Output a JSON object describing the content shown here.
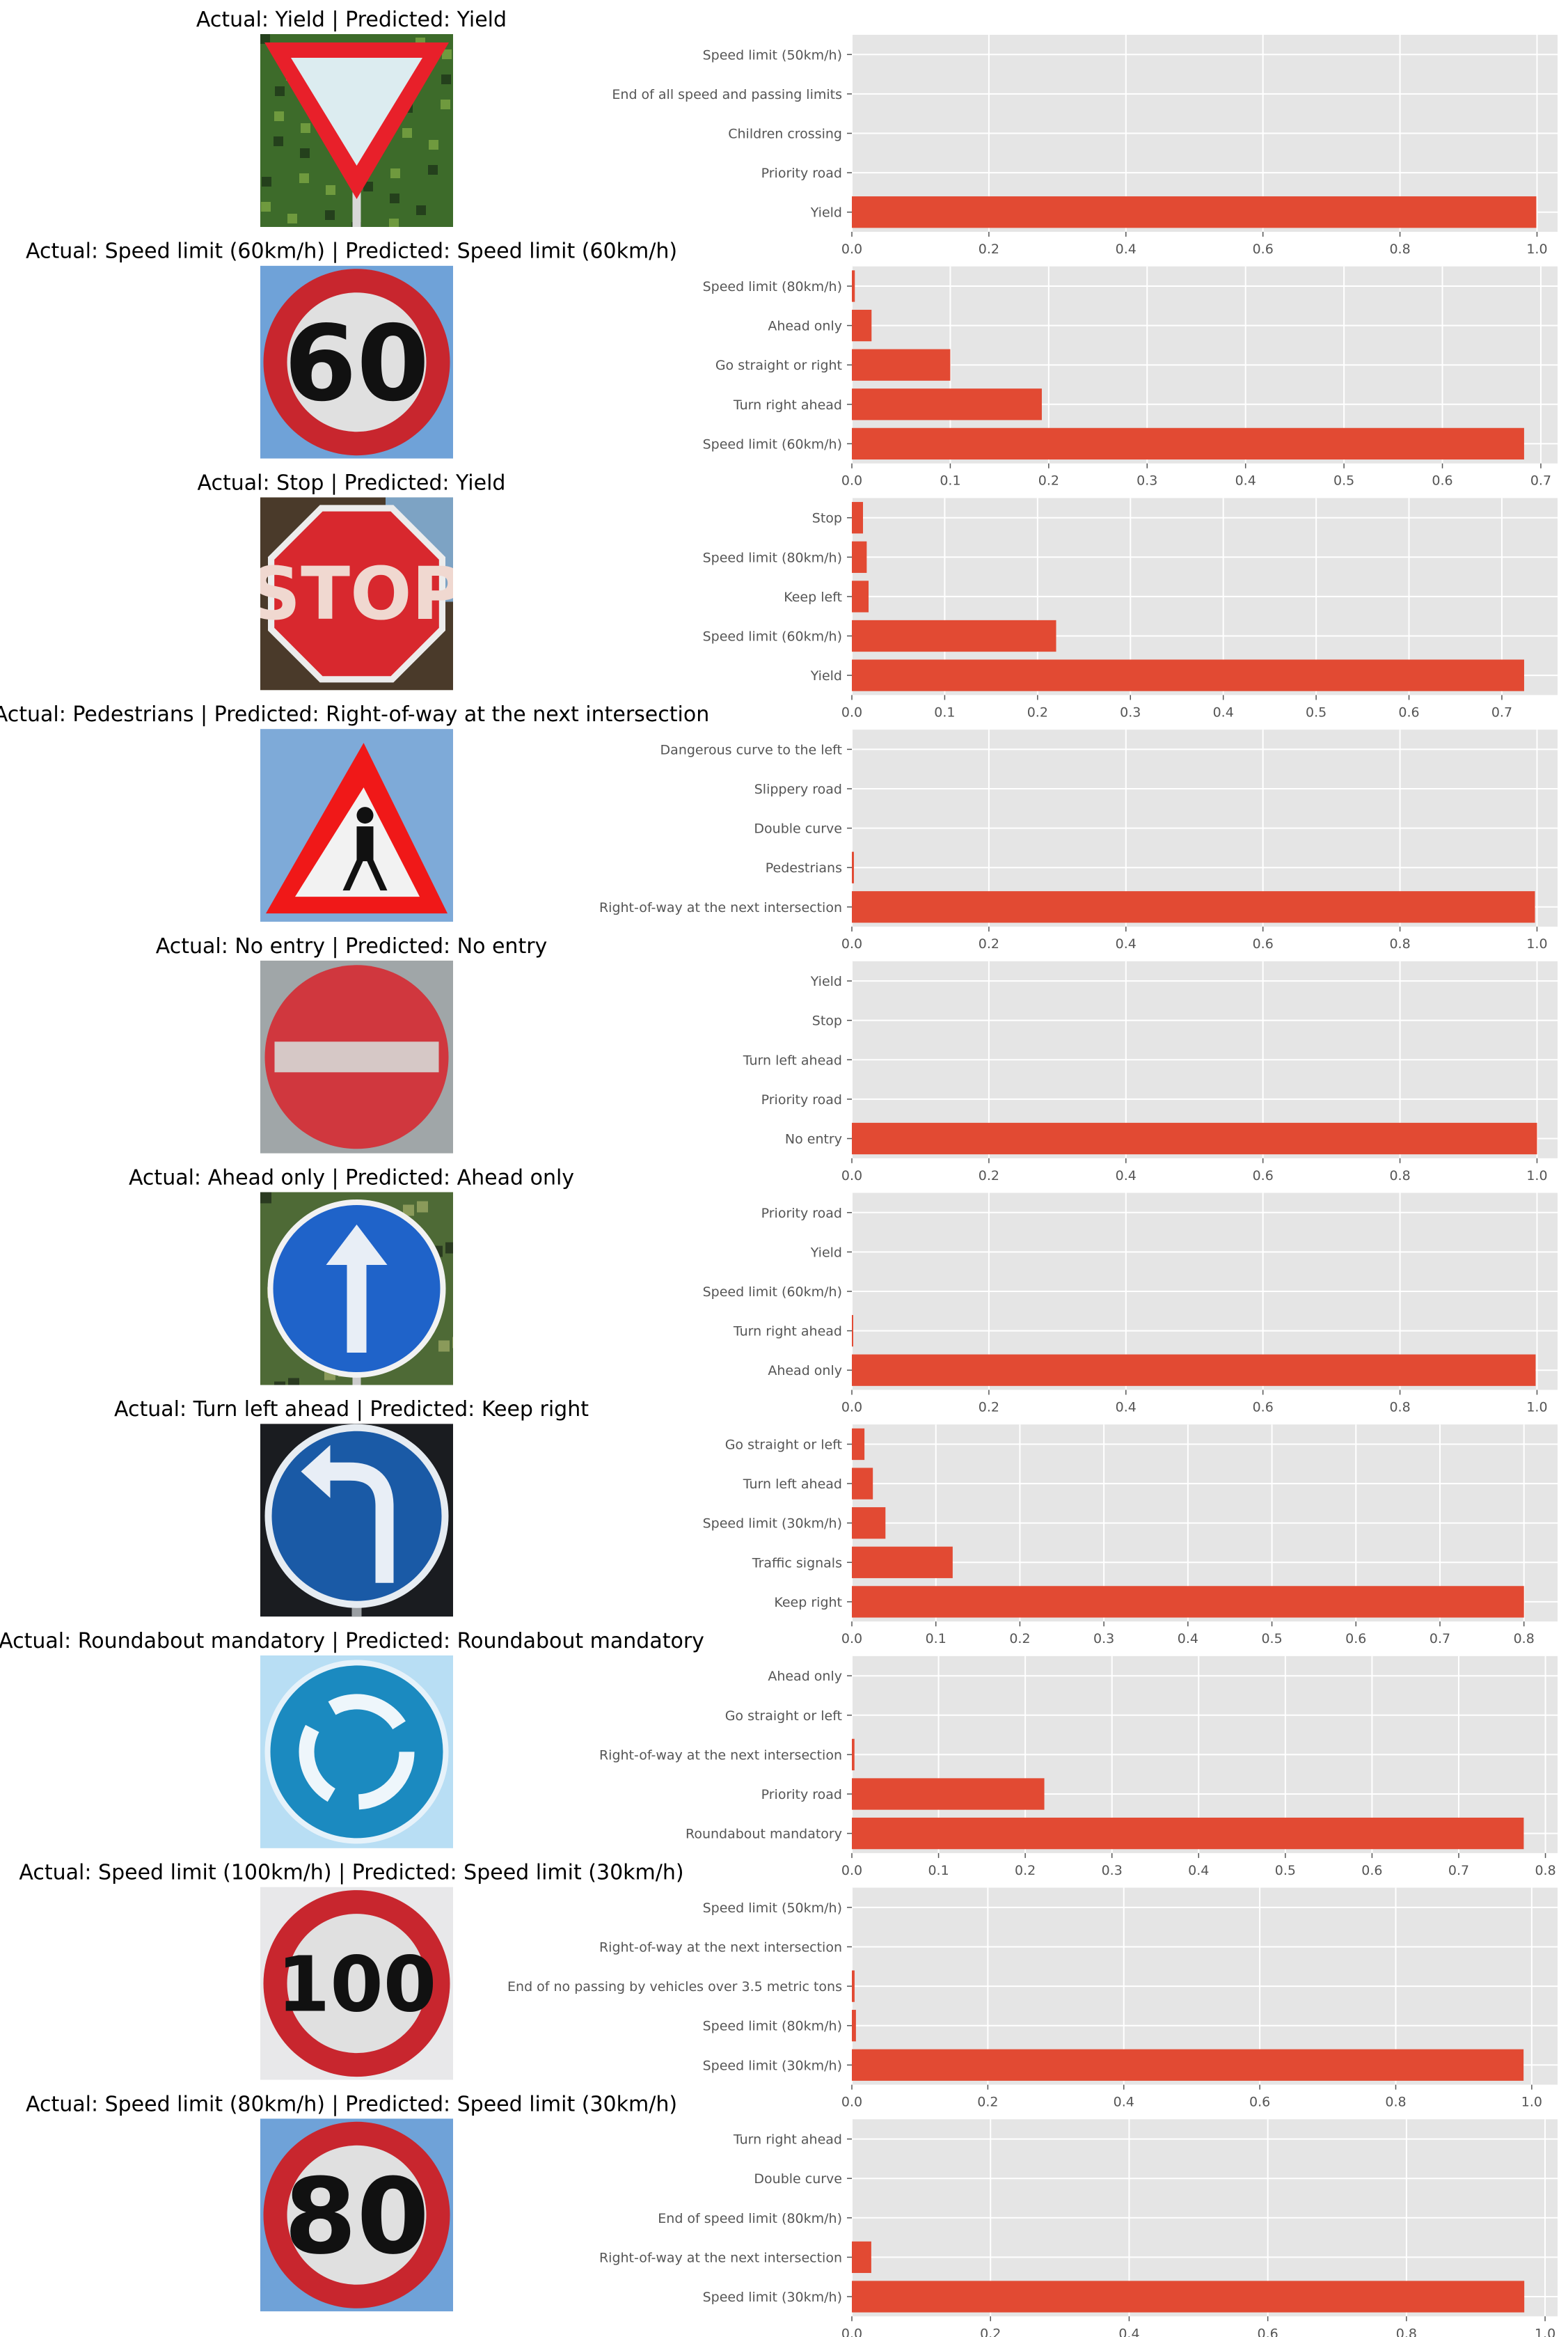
{
  "figure": {
    "background": "#ffffff",
    "panel_background": "#e5e5e5",
    "grid_color": "#ffffff",
    "bar_color": "#e24a33",
    "title_color": "#000000",
    "tick_label_color": "#555555"
  },
  "chart_data": [
    {
      "type": "bar",
      "orientation": "horizontal",
      "title": "Actual: Yield | Predicted: Yield",
      "image": {
        "sign": "yield-sign"
      },
      "categories": [
        "Yield",
        "Priority road",
        "Children crossing",
        "End of all speed and passing limits",
        "Speed limit (50km/h)"
      ],
      "values": [
        0.999,
        0,
        0,
        0,
        0
      ],
      "xlim": [
        0,
        1.03
      ],
      "xticks": [
        0.0,
        0.2,
        0.4,
        0.6,
        0.8,
        1.0
      ],
      "tick_format": 1,
      "grid": true
    },
    {
      "type": "bar",
      "orientation": "horizontal",
      "title": "Actual: Speed limit (60km/h) | Predicted: Speed limit (60km/h)",
      "image": {
        "sign": "speed-60-sign",
        "text": "60"
      },
      "categories": [
        "Speed limit (60km/h)",
        "Turn right ahead",
        "Go straight or right",
        "Ahead only",
        "Speed limit (80km/h)"
      ],
      "values": [
        0.683,
        0.193,
        0.1,
        0.02,
        0.003
      ],
      "xlim": [
        0,
        0.717
      ],
      "xticks": [
        0.0,
        0.1,
        0.2,
        0.3,
        0.4,
        0.5,
        0.6,
        0.7
      ],
      "tick_format": 1,
      "grid": true
    },
    {
      "type": "bar",
      "orientation": "horizontal",
      "title": "Actual: Stop | Predicted: Yield",
      "image": {
        "sign": "stop-sign",
        "text": "STOP"
      },
      "categories": [
        "Yield",
        "Speed limit (60km/h)",
        "Keep left",
        "Speed limit (80km/h)",
        "Stop"
      ],
      "values": [
        0.724,
        0.22,
        0.018,
        0.016,
        0.012
      ],
      "xlim": [
        0,
        0.76
      ],
      "xticks": [
        0.0,
        0.1,
        0.2,
        0.3,
        0.4,
        0.5,
        0.6,
        0.7
      ],
      "tick_format": 1,
      "grid": true
    },
    {
      "type": "bar",
      "orientation": "horizontal",
      "title": "Actual: Pedestrians | Predicted: Right-of-way at the next intersection",
      "image": {
        "sign": "pedestrians-sign"
      },
      "categories": [
        "Right-of-way at the next intersection",
        "Pedestrians",
        "Double curve",
        "Slippery road",
        "Dangerous curve to the left"
      ],
      "values": [
        0.997,
        0.003,
        0,
        0,
        0
      ],
      "xlim": [
        0,
        1.03
      ],
      "xticks": [
        0.0,
        0.2,
        0.4,
        0.6,
        0.8,
        1.0
      ],
      "tick_format": 1,
      "grid": true
    },
    {
      "type": "bar",
      "orientation": "horizontal",
      "title": "Actual: No entry | Predicted: No entry",
      "image": {
        "sign": "no-entry-sign"
      },
      "categories": [
        "No entry",
        "Priority road",
        "Turn left ahead",
        "Stop",
        "Yield"
      ],
      "values": [
        1.0,
        0,
        0,
        0,
        0
      ],
      "xlim": [
        0,
        1.03
      ],
      "xticks": [
        0.0,
        0.2,
        0.4,
        0.6,
        0.8,
        1.0
      ],
      "tick_format": 1,
      "grid": true
    },
    {
      "type": "bar",
      "orientation": "horizontal",
      "title": "Actual: Ahead only | Predicted: Ahead only",
      "image": {
        "sign": "ahead-only-sign"
      },
      "categories": [
        "Ahead only",
        "Turn right ahead",
        "Speed limit (60km/h)",
        "Yield",
        "Priority road"
      ],
      "values": [
        0.998,
        0.002,
        0,
        0,
        0
      ],
      "xlim": [
        0,
        1.03
      ],
      "xticks": [
        0.0,
        0.2,
        0.4,
        0.6,
        0.8,
        1.0
      ],
      "tick_format": 1,
      "grid": true
    },
    {
      "type": "bar",
      "orientation": "horizontal",
      "title": "Actual: Turn left ahead | Predicted: Keep right",
      "image": {
        "sign": "turn-left-ahead-sign"
      },
      "categories": [
        "Keep right",
        "Traffic signals",
        "Speed limit (30km/h)",
        "Turn left ahead",
        "Go straight or left"
      ],
      "values": [
        0.8,
        0.12,
        0.04,
        0.025,
        0.015
      ],
      "xlim": [
        0,
        0.84
      ],
      "xticks": [
        0.0,
        0.1,
        0.2,
        0.3,
        0.4,
        0.5,
        0.6,
        0.7,
        0.8
      ],
      "tick_format": 1,
      "grid": true
    },
    {
      "type": "bar",
      "orientation": "horizontal",
      "title": "Actual: Roundabout mandatory | Predicted: Roundabout mandatory",
      "image": {
        "sign": "roundabout-sign"
      },
      "categories": [
        "Roundabout mandatory",
        "Priority road",
        "Right-of-way at the next intersection",
        "Go straight or left",
        "Ahead only"
      ],
      "values": [
        0.775,
        0.222,
        0.003,
        0,
        0
      ],
      "xlim": [
        0,
        0.814
      ],
      "xticks": [
        0.0,
        0.1,
        0.2,
        0.3,
        0.4,
        0.5,
        0.6,
        0.7,
        0.8
      ],
      "tick_format": 1,
      "grid": true
    },
    {
      "type": "bar",
      "orientation": "horizontal",
      "title": "Actual: Speed limit (100km/h) | Predicted: Speed limit (30km/h)",
      "image": {
        "sign": "speed-100-sign",
        "text": "100"
      },
      "categories": [
        "Speed limit (30km/h)",
        "Speed limit (80km/h)",
        "End of no passing by vehicles over 3.5 metric tons",
        "Right-of-way at the next intersection",
        "Speed limit (50km/h)"
      ],
      "values": [
        0.988,
        0.006,
        0.004,
        0,
        0
      ],
      "xlim": [
        0,
        1.038
      ],
      "xticks": [
        0.0,
        0.2,
        0.4,
        0.6,
        0.8,
        1.0
      ],
      "tick_format": 1,
      "grid": true
    },
    {
      "type": "bar",
      "orientation": "horizontal",
      "title": "Actual: Speed limit (80km/h) | Predicted: Speed limit (30km/h)",
      "image": {
        "sign": "speed-80-sign",
        "text": "80"
      },
      "categories": [
        "Speed limit (30km/h)",
        "Right-of-way at the next intersection",
        "End of speed limit (80km/h)",
        "Double curve",
        "Turn right ahead"
      ],
      "values": [
        0.97,
        0.028,
        0,
        0,
        0
      ],
      "xlim": [
        0,
        1.018
      ],
      "xticks": [
        0.0,
        0.2,
        0.4,
        0.6,
        0.8,
        1.0
      ],
      "tick_format": 1,
      "grid": true
    }
  ]
}
